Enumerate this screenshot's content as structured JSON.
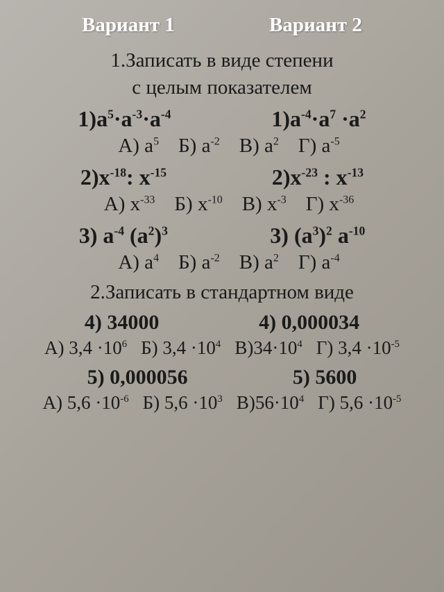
{
  "headers": {
    "variant1": "Вариант 1",
    "variant2": "Вариант 2"
  },
  "section1": {
    "line1": "1.Записать в виде степени",
    "line2": "с целым показателем"
  },
  "p1": {
    "left_pre": "1)а",
    "left_s1": "5",
    "left_m1": "·а",
    "left_s2": "-3",
    "left_m2": "·а",
    "left_s3": "-4",
    "right_pre": "1)а",
    "right_s1": "-4",
    "right_m1": "·а",
    "right_s2": "7",
    "right_m2": " ·а",
    "right_s3": "2"
  },
  "ans1": {
    "a_pre": "А) а",
    "a_sup": "5",
    "b_pre": "Б) а",
    "b_sup": "-2",
    "v_pre": "В) а",
    "v_sup": "2",
    "g_pre": "Г) а",
    "g_sup": "-5"
  },
  "p2": {
    "left_pre": "2)х",
    "left_s1": "-18",
    "left_m1": ": х",
    "left_s2": "-15",
    "right_pre": "2)х",
    "right_s1": "-23",
    "right_m1": " : х",
    "right_s2": "-13"
  },
  "ans2": {
    "a_pre": "А) х",
    "a_sup": "-33",
    "b_pre": "Б) х",
    "b_sup": "-10",
    "v_pre": "В) х",
    "v_sup": "-3",
    "g_pre": "Г) х",
    "g_sup": "-36"
  },
  "p3": {
    "left_pre": "3) а",
    "left_s1": "-4",
    "left_m1": " (а",
    "left_s2": "2",
    "left_m2": ")",
    "left_s3": "3",
    "right_pre": "3) (а",
    "right_s1": "3",
    "right_m1": ")",
    "right_s2": "2",
    "right_m2": " а",
    "right_s3": "-10"
  },
  "ans3": {
    "a_pre": "А) а",
    "a_sup": "4",
    "b_pre": "Б) а",
    "b_sup": "-2",
    "v_pre": "В) а",
    "v_sup": "2",
    "g_pre": "Г) а",
    "g_sup": "-4"
  },
  "section2": "2.Записать в стандартном виде",
  "p4": {
    "left": "4) 34000",
    "right": "4) 0,000034"
  },
  "ans4": {
    "a_pre": "А) 3,4 ·10",
    "a_sup": "6",
    "b_pre": "Б) 3,4 ·10",
    "b_sup": "4",
    "v_pre": "В)34·10",
    "v_sup": "4",
    "g_pre": "Г) 3,4 ·10",
    "g_sup": "-5"
  },
  "p5": {
    "left": "5) 0,000056",
    "right": "5) 5600"
  },
  "ans5": {
    "a_pre": "А) 5,6 ·10",
    "a_sup": "-6",
    "b_pre": "Б) 5,6 ·10",
    "b_sup": "3",
    "v_pre": "В)56·10",
    "v_sup": "4",
    "g_pre": "Г) 5,6 ·10",
    "g_sup": "-5"
  }
}
